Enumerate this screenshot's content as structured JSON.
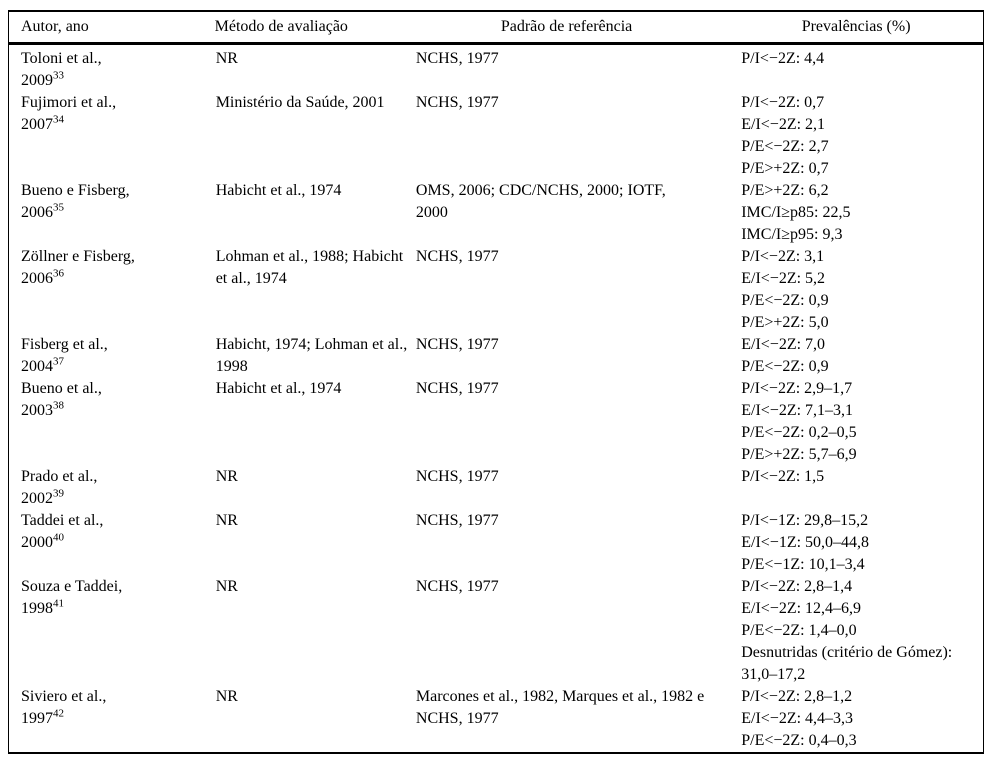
{
  "table": {
    "columns": [
      "Autor, ano",
      "Método de avaliação",
      "Padrão de referência",
      "Prevalências (%)"
    ],
    "rows": [
      {
        "author": [
          "Toloni et al.,",
          "2009"
        ],
        "sup": "33",
        "method": [
          "NR"
        ],
        "reference": [
          "NCHS, 1977"
        ],
        "prevalences": [
          "P/I<−2Z: 4,4"
        ]
      },
      {
        "author": [
          "Fujimori et al.,",
          "2007"
        ],
        "sup": "34",
        "method": [
          "Ministério da Saúde, 2001"
        ],
        "reference": [
          "NCHS, 1977"
        ],
        "prevalences": [
          "P/I<−2Z: 0,7",
          "E/I<−2Z: 2,1",
          "P/E<−2Z: 2,7",
          "P/E>+2Z: 0,7"
        ]
      },
      {
        "author": [
          "Bueno e Fisberg,",
          "2006"
        ],
        "sup": "35",
        "method": [
          "Habicht et al., 1974"
        ],
        "reference": [
          "OMS, 2006; CDC/NCHS, 2000; IOTF,",
          "2000"
        ],
        "prevalences": [
          "P/E>+2Z: 6,2",
          "IMC/I≥p85: 22,5",
          "IMC/I≥p95: 9,3"
        ]
      },
      {
        "author": [
          "Zöllner e Fisberg,",
          "2006"
        ],
        "sup": "36",
        "method": [
          "Lohman et al., 1988; Habicht",
          "et al., 1974"
        ],
        "reference": [
          "NCHS, 1977"
        ],
        "prevalences": [
          "P/I<−2Z: 3,1",
          "E/I<−2Z: 5,2",
          "P/E<−2Z: 0,9",
          "P/E>+2Z: 5,0"
        ]
      },
      {
        "author": [
          "Fisberg et al.,",
          "2004"
        ],
        "sup": "37",
        "method": [
          "Habicht, 1974; Lohman et al.,",
          "1998"
        ],
        "reference": [
          "NCHS, 1977"
        ],
        "prevalences": [
          "E/I<−2Z: 7,0",
          "P/E<−2Z: 0,9"
        ]
      },
      {
        "author": [
          "Bueno et al.,",
          "2003"
        ],
        "sup": "38",
        "method": [
          "Habicht et al., 1974"
        ],
        "reference": [
          "NCHS, 1977"
        ],
        "prevalences": [
          "P/I<−2Z: 2,9–1,7",
          "E/I<−2Z: 7,1–3,1",
          "P/E<−2Z: 0,2–0,5",
          "P/E>+2Z: 5,7–6,9"
        ]
      },
      {
        "author": [
          "Prado et al.,",
          "2002"
        ],
        "sup": "39",
        "method": [
          "NR"
        ],
        "reference": [
          "NCHS, 1977"
        ],
        "prevalences": [
          "P/I<−2Z: 1,5"
        ]
      },
      {
        "author": [
          "Taddei et al.,",
          "2000"
        ],
        "sup": "40",
        "method": [
          "NR"
        ],
        "reference": [
          "NCHS, 1977"
        ],
        "prevalences": [
          "P/I<−1Z: 29,8–15,2",
          "E/I<−1Z: 50,0–44,8",
          "P/E<−1Z: 10,1–3,4"
        ]
      },
      {
        "author": [
          "Souza e Taddei,",
          "1998"
        ],
        "sup": "41",
        "method": [
          "NR"
        ],
        "reference": [
          "NCHS, 1977"
        ],
        "prevalences": [
          "P/I<−2Z: 2,8–1,4",
          "E/I<−2Z: 12,4–6,9",
          "P/E<−2Z: 1,4–0,0",
          "Desnutridas (critério de Gómez):",
          "31,0–17,2"
        ]
      },
      {
        "author": [
          "Siviero et al.,",
          "1997"
        ],
        "sup": "42",
        "method": [
          "NR"
        ],
        "reference": [
          "Marcones et al., 1982, Marques et al., 1982 e",
          "NCHS, 1977"
        ],
        "prevalences": [
          "P/I<−2Z: 2,8–1,2",
          "E/I<−2Z: 4,4–3,3",
          "P/E<−2Z: 0,4–0,3"
        ]
      }
    ]
  }
}
